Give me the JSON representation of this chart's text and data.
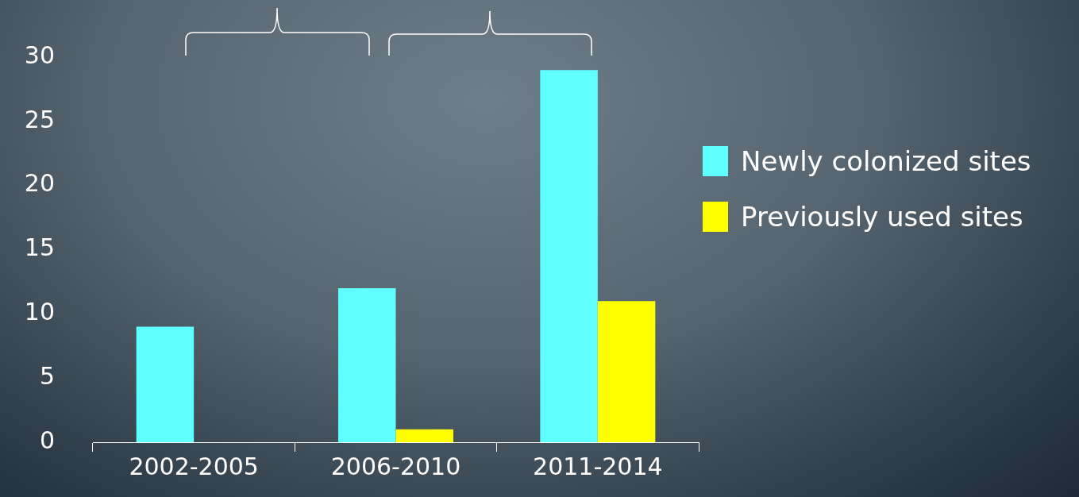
{
  "chart_data": {
    "type": "bar",
    "categories": [
      "2002-2005",
      "2006-2010",
      "2011-2014"
    ],
    "series": [
      {
        "name": "Newly colonized sites",
        "color": "#5fffff",
        "values": [
          9,
          12,
          29
        ]
      },
      {
        "name": "Previously used sites",
        "color": "#ffff00",
        "values": [
          0,
          1,
          11
        ]
      }
    ],
    "ylim": [
      0,
      30
    ],
    "yticks": [
      0,
      5,
      10,
      15,
      20,
      25,
      30
    ],
    "grid": false,
    "legend": "right"
  }
}
